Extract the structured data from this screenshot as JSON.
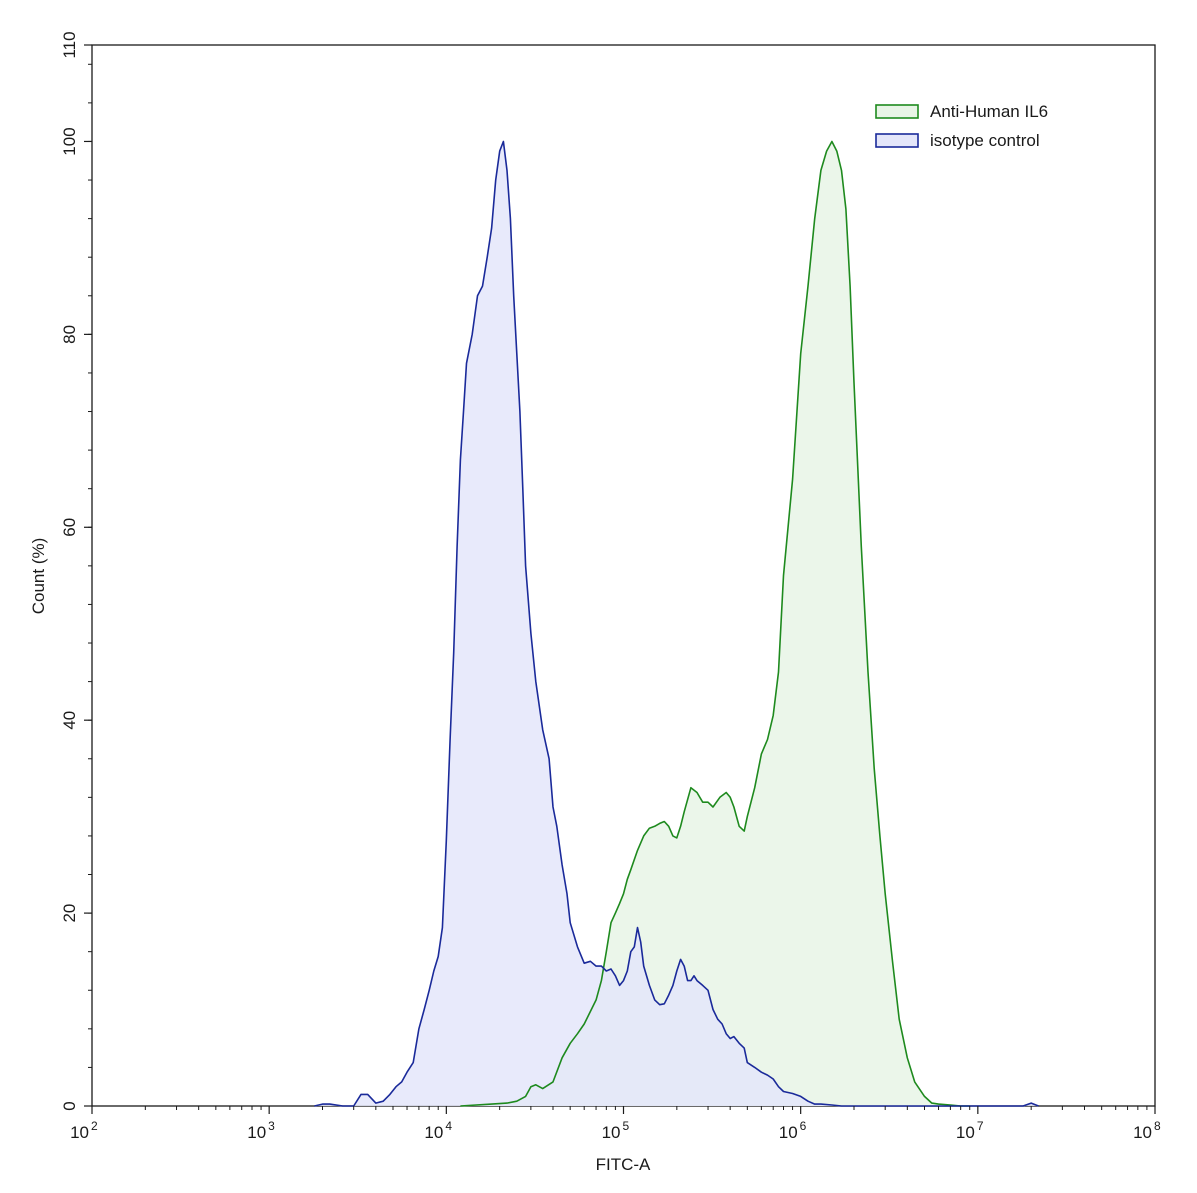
{
  "chart_data": {
    "type": "area",
    "xlabel": "FITC-A",
    "ylabel": "Count (%)",
    "xscale": "log",
    "xlim": [
      100,
      100000000
    ],
    "ylim": [
      0,
      110
    ],
    "x_ticks": [
      {
        "base": "10",
        "exp": "2"
      },
      {
        "base": "10",
        "exp": "3"
      },
      {
        "base": "10",
        "exp": "4"
      },
      {
        "base": "10",
        "exp": "5"
      },
      {
        "base": "10",
        "exp": "6"
      },
      {
        "base": "10",
        "exp": "7"
      },
      {
        "base": "10",
        "exp": "8"
      }
    ],
    "y_ticks": [
      "0",
      "20",
      "40",
      "60",
      "80",
      "100",
      "110"
    ],
    "legend_position": "top-right",
    "grid": false,
    "series": [
      {
        "name": "Anti-Human IL6",
        "color": "#1e8a1e",
        "fill": "#e8f5e6",
        "x": [
          12000,
          18000,
          22000,
          25000,
          28000,
          30000,
          32000,
          35000,
          40000,
          45000,
          50000,
          55000,
          60000,
          70000,
          75000,
          80000,
          85000,
          90000,
          95000,
          100000,
          105000,
          110000,
          120000,
          130000,
          140000,
          150000,
          160000,
          170000,
          180000,
          190000,
          200000,
          210000,
          220000,
          240000,
          260000,
          280000,
          300000,
          320000,
          350000,
          380000,
          400000,
          420000,
          450000,
          480000,
          500000,
          550000,
          600000,
          650000,
          700000,
          750000,
          800000,
          900000,
          1000000,
          1100000,
          1200000,
          1300000,
          1400000,
          1500000,
          1600000,
          1700000,
          1800000,
          1900000,
          2000000,
          2200000,
          2400000,
          2600000,
          2800000,
          3000000,
          3300000,
          3600000,
          4000000,
          4400000,
          5000000,
          5500000,
          6000000,
          7000000,
          8000000,
          9000000
        ],
        "y": [
          0,
          0.2,
          0.3,
          0.5,
          1,
          2,
          2.2,
          1.8,
          2.5,
          5,
          6.5,
          7.5,
          8.5,
          11,
          13,
          16,
          19,
          20,
          21,
          22,
          23.5,
          24.5,
          26.5,
          28,
          28.8,
          29,
          29.3,
          29.5,
          29,
          28,
          27.8,
          29,
          30.5,
          33,
          32.5,
          31.5,
          31.5,
          31,
          32,
          32.5,
          32,
          31,
          29,
          28.5,
          30,
          33,
          36.5,
          38,
          40.5,
          45,
          55,
          65,
          78,
          85,
          92,
          97,
          99,
          100,
          99,
          97,
          93,
          85,
          75,
          58,
          45,
          35,
          28,
          22,
          15,
          9,
          5,
          2.5,
          1,
          0.3,
          0.2,
          0.1,
          0,
          0
        ]
      },
      {
        "name": "isotype control",
        "color": "#1a2a9a",
        "fill": "#e4e6fa",
        "x": [
          1800,
          2000,
          2200,
          2600,
          3000,
          3300,
          3600,
          4000,
          4400,
          4800,
          5200,
          5600,
          6000,
          6500,
          7000,
          7500,
          8000,
          8500,
          9000,
          9500,
          10000,
          10500,
          11000,
          11500,
          12000,
          12500,
          13000,
          14000,
          15000,
          16000,
          17000,
          18000,
          19000,
          20000,
          21000,
          22000,
          23000,
          24000,
          25000,
          26000,
          27000,
          28000,
          30000,
          32000,
          35000,
          38000,
          40000,
          42000,
          45000,
          48000,
          50000,
          55000,
          60000,
          65000,
          70000,
          75000,
          80000,
          85000,
          90000,
          95000,
          100000,
          105000,
          110000,
          115000,
          120000,
          125000,
          130000,
          140000,
          150000,
          160000,
          170000,
          180000,
          190000,
          200000,
          210000,
          220000,
          230000,
          240000,
          250000,
          260000,
          280000,
          300000,
          320000,
          340000,
          360000,
          380000,
          400000,
          420000,
          450000,
          480000,
          500000,
          550000,
          600000,
          650000,
          700000,
          750000,
          800000,
          900000,
          1000000,
          1100000,
          1200000,
          1300000,
          1500000,
          1700000,
          2000000,
          2300000,
          2600000,
          3000000,
          3400000,
          4000000,
          5000000,
          6000000,
          7000000,
          8000000,
          9000000,
          12000000,
          15000000,
          18000000,
          20000000,
          22000000
        ],
        "y": [
          0,
          0.2,
          0.2,
          0,
          0,
          1.2,
          1.2,
          0.3,
          0.5,
          1.2,
          2,
          2.5,
          3.5,
          4.5,
          8,
          10,
          12,
          14,
          15.5,
          18.5,
          27.5,
          38,
          47,
          58,
          67,
          72,
          77,
          80,
          84,
          85,
          88,
          91,
          96,
          99,
          100,
          97,
          92,
          84,
          78,
          72,
          64,
          56,
          49,
          44,
          39,
          36,
          31,
          29,
          25,
          22,
          19,
          16.5,
          14.8,
          15,
          14.5,
          14.5,
          14,
          14.2,
          13.5,
          12.5,
          13,
          14,
          16,
          16.5,
          18.5,
          17,
          14.5,
          12.5,
          11,
          10.5,
          10.6,
          11.5,
          12.5,
          14,
          15.2,
          14.5,
          13,
          13,
          13.5,
          13,
          12.5,
          12,
          10,
          9,
          8.5,
          7.5,
          7,
          7.2,
          6.5,
          6,
          4.5,
          4,
          3.5,
          3.2,
          2.8,
          2,
          1.5,
          1.3,
          1,
          0.5,
          0.2,
          0.2,
          0.1,
          0,
          0,
          0,
          0,
          0,
          0,
          0,
          0,
          0,
          0,
          0,
          0,
          0,
          0,
          0,
          0.3,
          0
        ]
      }
    ]
  }
}
